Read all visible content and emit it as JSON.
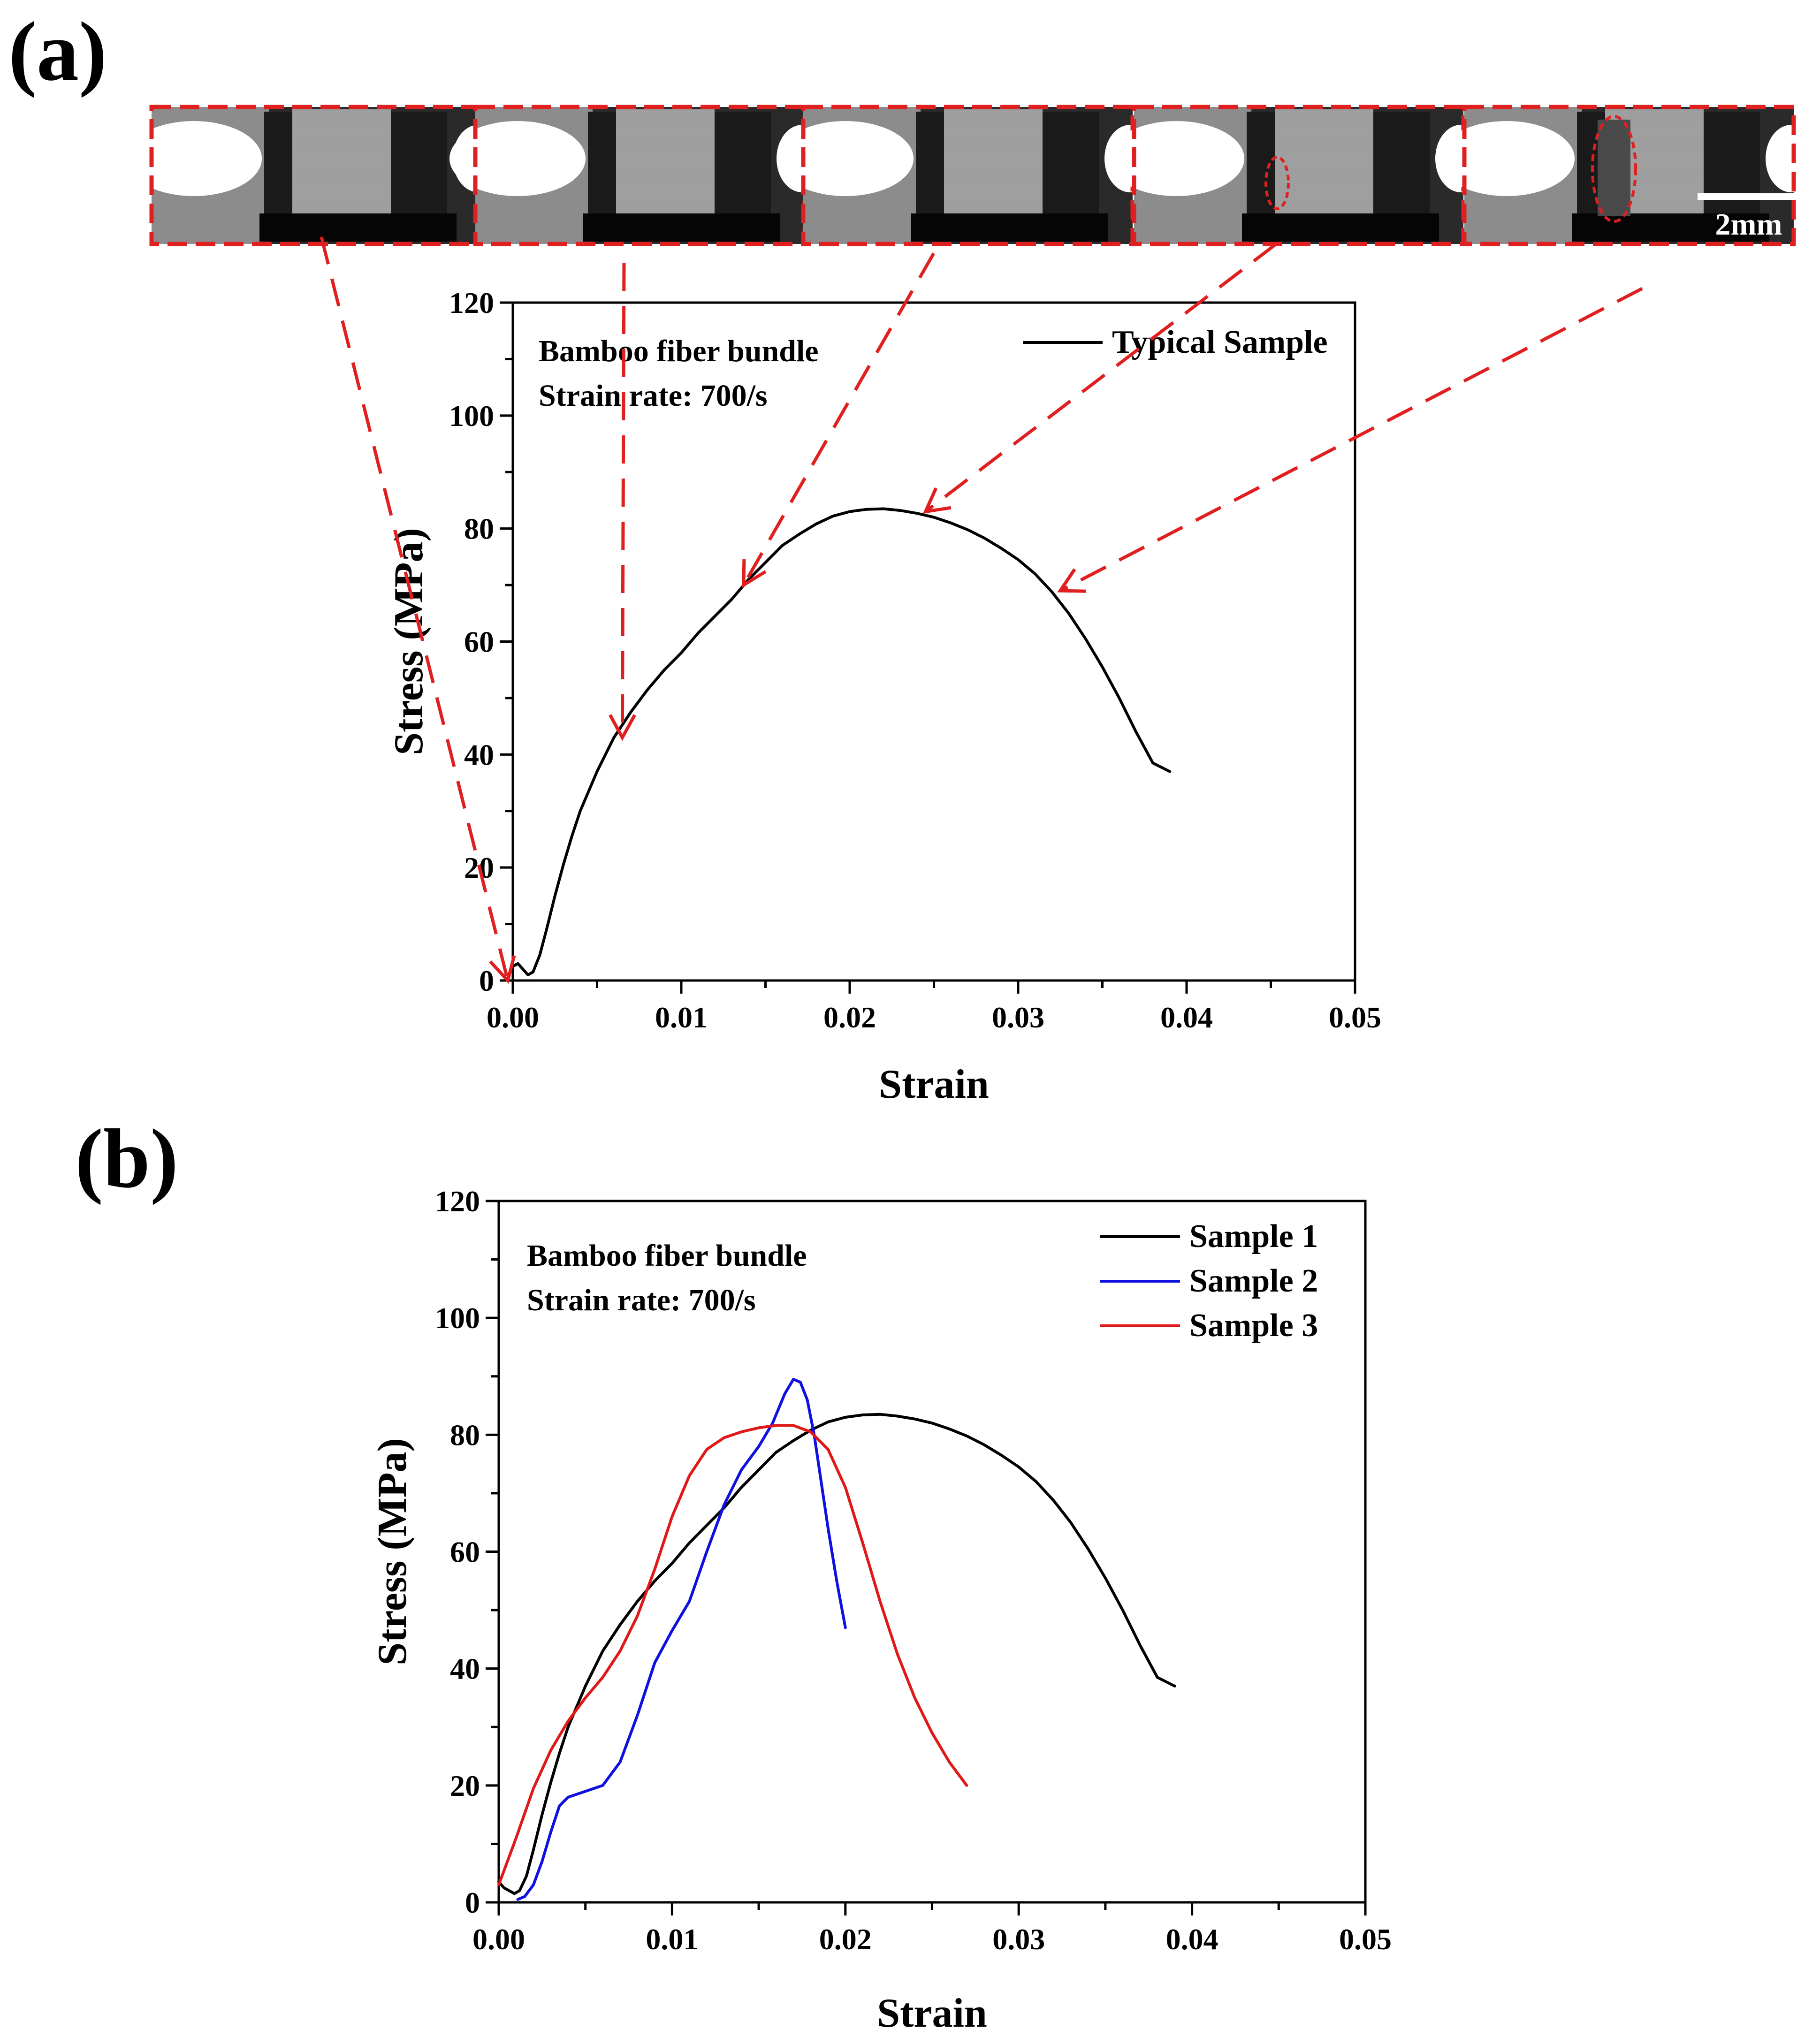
{
  "figure": {
    "panel_a_label": "(a)",
    "panel_b_label": "(b)",
    "scale_bar_label": "2mm",
    "frames_count": 5
  },
  "colors": {
    "sample1": "#000000",
    "sample2": "#1010e0",
    "sample3": "#e01818",
    "annotation": "#e02020"
  },
  "chart_data": [
    {
      "id": "a",
      "type": "line",
      "title": "",
      "xlabel": "Strain",
      "ylabel": "Stress (MPa)",
      "xlim": [
        0,
        0.05
      ],
      "ylim": [
        0,
        120
      ],
      "xticks": [
        0.0,
        0.01,
        0.02,
        0.03,
        0.04,
        0.05
      ],
      "xtick_labels": [
        "0.00",
        "0.01",
        "0.02",
        "0.03",
        "0.04",
        "0.05"
      ],
      "yticks": [
        0,
        20,
        40,
        60,
        80,
        100,
        120
      ],
      "ytick_labels": [
        "0",
        "20",
        "40",
        "60",
        "80",
        "100",
        "120"
      ],
      "annotation_lines": [
        "Bamboo fiber bundle",
        "Strain rate: 700/s"
      ],
      "legend_position": "top-right",
      "frame_pointers": [
        {
          "x": -0.0003,
          "y": 0
        },
        {
          "x": 0.0065,
          "y": 43
        },
        {
          "x": 0.0137,
          "y": 70
        },
        {
          "x": 0.0245,
          "y": 83
        },
        {
          "x": 0.0325,
          "y": 69
        }
      ],
      "series": [
        {
          "name": "Typical Sample",
          "color": "#000000",
          "x": [
            0.0,
            0.0003,
            0.0006,
            0.0009,
            0.0012,
            0.0016,
            0.002,
            0.0025,
            0.003,
            0.0035,
            0.004,
            0.005,
            0.006,
            0.007,
            0.008,
            0.009,
            0.01,
            0.011,
            0.012,
            0.013,
            0.014,
            0.015,
            0.016,
            0.017,
            0.018,
            0.019,
            0.02,
            0.021,
            0.022,
            0.023,
            0.024,
            0.025,
            0.026,
            0.027,
            0.028,
            0.029,
            0.03,
            0.031,
            0.032,
            0.033,
            0.034,
            0.035,
            0.036,
            0.037,
            0.038,
            0.039
          ],
          "y": [
            2.5,
            3.0,
            2.0,
            1.0,
            1.5,
            4.5,
            9.0,
            15.0,
            20.5,
            25.5,
            30.0,
            37.0,
            43.0,
            47.5,
            51.5,
            55.0,
            58.0,
            61.5,
            64.5,
            67.5,
            71.0,
            74.0,
            77.0,
            79.0,
            80.8,
            82.2,
            83.0,
            83.4,
            83.5,
            83.2,
            82.7,
            82.0,
            81.0,
            79.8,
            78.3,
            76.5,
            74.5,
            72.0,
            68.8,
            65.0,
            60.5,
            55.5,
            50.0,
            44.0,
            38.5,
            37.0
          ]
        }
      ]
    },
    {
      "id": "b",
      "type": "line",
      "title": "",
      "xlabel": "Strain",
      "ylabel": "Stress (MPa)",
      "xlim": [
        0,
        0.05
      ],
      "ylim": [
        0,
        120
      ],
      "xticks": [
        0.0,
        0.01,
        0.02,
        0.03,
        0.04,
        0.05
      ],
      "xtick_labels": [
        "0.00",
        "0.01",
        "0.02",
        "0.03",
        "0.04",
        "0.05"
      ],
      "yticks": [
        0,
        20,
        40,
        60,
        80,
        100,
        120
      ],
      "ytick_labels": [
        "0",
        "20",
        "40",
        "60",
        "80",
        "100",
        "120"
      ],
      "annotation_lines": [
        "Bamboo fiber bundle",
        "Strain rate: 700/s"
      ],
      "legend_position": "top-right",
      "series": [
        {
          "name": "Sample 1",
          "color": "#000000",
          "x": [
            0.0,
            0.0003,
            0.0006,
            0.0009,
            0.0012,
            0.0016,
            0.002,
            0.0025,
            0.003,
            0.0035,
            0.004,
            0.005,
            0.006,
            0.007,
            0.008,
            0.009,
            0.01,
            0.011,
            0.012,
            0.013,
            0.014,
            0.015,
            0.016,
            0.017,
            0.018,
            0.019,
            0.02,
            0.021,
            0.022,
            0.023,
            0.024,
            0.025,
            0.026,
            0.027,
            0.028,
            0.029,
            0.03,
            0.031,
            0.032,
            0.033,
            0.034,
            0.035,
            0.036,
            0.037,
            0.038,
            0.039
          ],
          "y": [
            3.5,
            2.5,
            2.0,
            1.5,
            2.0,
            4.5,
            9.0,
            15.0,
            20.5,
            25.5,
            30.0,
            37.0,
            43.0,
            47.5,
            51.5,
            55.0,
            58.0,
            61.5,
            64.5,
            67.5,
            71.0,
            74.0,
            77.0,
            79.0,
            80.8,
            82.2,
            83.0,
            83.4,
            83.5,
            83.2,
            82.7,
            82.0,
            81.0,
            79.8,
            78.3,
            76.5,
            74.5,
            72.0,
            68.8,
            65.0,
            60.5,
            55.5,
            50.0,
            44.0,
            38.5,
            37.0
          ]
        },
        {
          "name": "Sample 2",
          "color": "#1010e0",
          "x": [
            0.0011,
            0.0015,
            0.002,
            0.0025,
            0.003,
            0.0035,
            0.004,
            0.005,
            0.006,
            0.007,
            0.008,
            0.009,
            0.01,
            0.011,
            0.012,
            0.013,
            0.014,
            0.015,
            0.0158,
            0.0165,
            0.017,
            0.0174,
            0.0178,
            0.0182,
            0.0186,
            0.019,
            0.0195,
            0.02
          ],
          "y": [
            0.5,
            1.0,
            3.0,
            7.0,
            12.0,
            16.5,
            18.0,
            19.0,
            20.0,
            24.0,
            32.0,
            41.0,
            46.5,
            51.5,
            60.0,
            68.0,
            74.0,
            78.0,
            82.0,
            87.0,
            89.5,
            89.0,
            86.0,
            80.0,
            72.0,
            64.0,
            55.0,
            47.0
          ]
        },
        {
          "name": "Sample 3",
          "color": "#e01818",
          "x": [
            0.0,
            0.001,
            0.002,
            0.003,
            0.004,
            0.005,
            0.006,
            0.007,
            0.008,
            0.009,
            0.01,
            0.011,
            0.012,
            0.013,
            0.014,
            0.015,
            0.016,
            0.017,
            0.018,
            0.019,
            0.02,
            0.021,
            0.022,
            0.023,
            0.024,
            0.025,
            0.026,
            0.027
          ],
          "y": [
            3.0,
            11.0,
            19.5,
            26.0,
            31.0,
            35.0,
            38.5,
            43.0,
            49.0,
            57.0,
            66.0,
            73.0,
            77.5,
            79.5,
            80.5,
            81.2,
            81.6,
            81.6,
            80.5,
            77.5,
            71.0,
            61.5,
            51.5,
            42.5,
            35.0,
            29.0,
            24.0,
            20.0
          ]
        }
      ]
    }
  ]
}
